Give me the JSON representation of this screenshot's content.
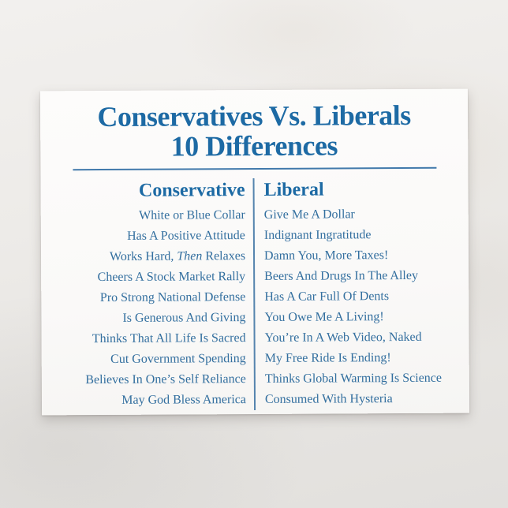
{
  "postcard": {
    "title_line1": "Conservatives Vs. Liberals",
    "title_line2": "10 Differences",
    "accent_color": "#1d6aa4",
    "body_text_color": "#336f9f",
    "left_header": "Conservative",
    "right_header": "Liberal",
    "rows": [
      {
        "conservative": "White or Blue Collar",
        "liberal": "Give Me A Dollar"
      },
      {
        "conservative": "Has A Positive Attitude",
        "liberal": "Indignant Ingratitude"
      },
      {
        "conservative_prefix": "Works Hard, ",
        "conservative_italic": "Then",
        "conservative_suffix": " Relaxes",
        "liberal": "Damn You, More Taxes!"
      },
      {
        "conservative": "Cheers A Stock Market Rally",
        "liberal": "Beers And Drugs In The Alley"
      },
      {
        "conservative": "Pro Strong National Defense",
        "liberal": "Has A Car Full Of Dents"
      },
      {
        "conservative": "Is Generous And Giving",
        "liberal": "You Owe Me A Living!"
      },
      {
        "conservative": "Thinks That All Life Is Sacred",
        "liberal": "You’re In A Web Video, Naked"
      },
      {
        "conservative": "Cut Government Spending",
        "liberal": "My Free Ride Is Ending!"
      },
      {
        "conservative": "Believes In One’s Self Reliance",
        "liberal": "Thinks Global Warming Is Science"
      },
      {
        "conservative": "May God Bless America",
        "liberal": "Consumed With Hysteria"
      }
    ]
  }
}
